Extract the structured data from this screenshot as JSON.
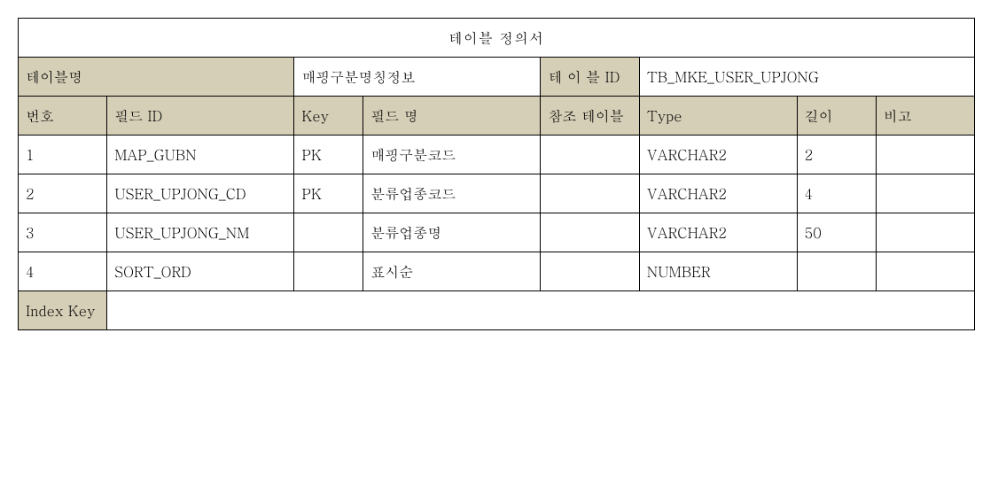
{
  "title": "테이블 정의서",
  "meta": {
    "table_name_label": "테이블명",
    "table_name_value": "매핑구분명칭정보",
    "table_id_label": "테 이 블 ID",
    "table_id_value": "TB_MKE_USER_UPJONG"
  },
  "columns": {
    "num": "번호",
    "field_id": "필드 ID",
    "key": "Key",
    "field_name": "필드 명",
    "ref_table": "참조 테이블",
    "type": "Type",
    "length": "길이",
    "note": "비고"
  },
  "rows": [
    {
      "num": "1",
      "field_id": "MAP_GUBN",
      "key": "PK",
      "field_name": "매핑구분코드",
      "ref_table": "",
      "type": "VARCHAR2",
      "length": "2",
      "note": ""
    },
    {
      "num": "2",
      "field_id": "USER_UPJONG_CD",
      "key": "PK",
      "field_name": "분류업종코드",
      "ref_table": "",
      "type": "VARCHAR2",
      "length": "4",
      "note": ""
    },
    {
      "num": "3",
      "field_id": "USER_UPJONG_NM",
      "key": "",
      "field_name": "분류업종명",
      "ref_table": "",
      "type": "VARCHAR2",
      "length": "50",
      "note": ""
    },
    {
      "num": "4",
      "field_id": "SORT_ORD",
      "key": "",
      "field_name": "표시순",
      "ref_table": "",
      "type": "NUMBER",
      "length": "",
      "note": ""
    }
  ],
  "index_key_label": "Index Key",
  "index_key_value": "",
  "style": {
    "header_bg": "#d6cfb7",
    "border_color": "#000000",
    "font_size": 16,
    "col_widths": {
      "num": 90,
      "field_id": 190,
      "key": 70,
      "field_name": 180,
      "ref": 100,
      "type": 160,
      "len": 80,
      "note": 100
    }
  }
}
